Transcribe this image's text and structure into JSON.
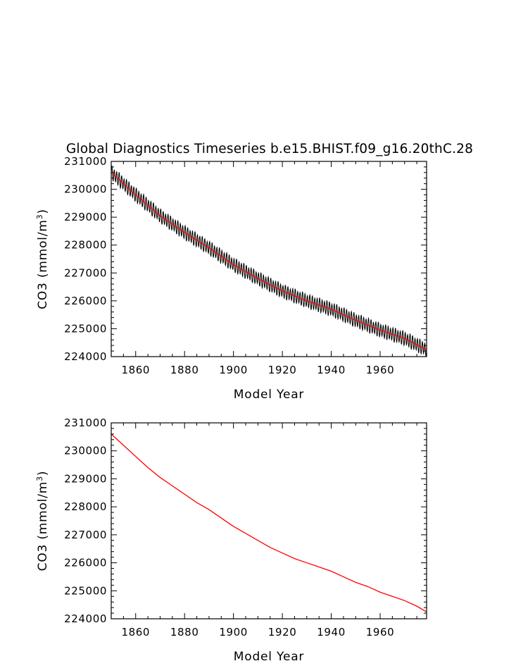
{
  "page": {
    "title": "Global Diagnostics Timeseries b.e15.BHIST.f09_g16.20thC.28"
  },
  "colors": {
    "raw_series": "#000000",
    "smoothed_series": "#ff0000",
    "axes": "#000000"
  },
  "chart_data": [
    {
      "type": "line",
      "title": "Global Diagnostics Timeseries b.e15.BHIST.f09_g16.20thC.28",
      "xlabel": "Model Year",
      "ylabel_main": "CO3 (mmol/m",
      "ylabel_sup": "3",
      "ylabel_close": ")",
      "xlim": [
        1850,
        1979
      ],
      "ylim": [
        224000,
        231000
      ],
      "xticks": [
        1860,
        1880,
        1900,
        1920,
        1940,
        1960
      ],
      "xtick_labels": [
        "1860",
        "1880",
        "1900",
        "1920",
        "1940",
        "1960"
      ],
      "yticks": [
        224000,
        225000,
        226000,
        227000,
        228000,
        229000,
        230000,
        231000
      ],
      "ytick_labels": [
        "224000",
        "225000",
        "226000",
        "227000",
        "228000",
        "229000",
        "230000",
        "231000"
      ],
      "x_minor_step": 5,
      "y_minor_step": 200,
      "grid": false,
      "series": [
        {
          "color": "#000000",
          "note_sampling": "monthly",
          "x": [
            1850,
            1860,
            1870,
            1880,
            1890,
            1900,
            1910,
            1920,
            1930,
            1940,
            1950,
            1960,
            1970,
            1978.9
          ],
          "y": [
            230600,
            229800,
            229050,
            228450,
            227900,
            227300,
            226800,
            226350,
            226000,
            225700,
            225300,
            224950,
            224650,
            224250
          ],
          "seasonal_amplitude": 230
        },
        {
          "color": "#ff0000",
          "x": [
            1850,
            1860,
            1870,
            1880,
            1890,
            1900,
            1910,
            1920,
            1930,
            1940,
            1950,
            1960,
            1970,
            1978.9
          ],
          "y": [
            230600,
            229800,
            229050,
            228450,
            227900,
            227300,
            226800,
            226350,
            226000,
            225700,
            225300,
            224950,
            224650,
            224250
          ]
        }
      ]
    },
    {
      "type": "line",
      "xlabel": "Model Year",
      "ylabel_main": "CO3 (mmol/m",
      "ylabel_sup": "3",
      "ylabel_close": ")",
      "xlim": [
        1850,
        1979
      ],
      "ylim": [
        224000,
        231000
      ],
      "xticks": [
        1860,
        1880,
        1900,
        1920,
        1940,
        1960
      ],
      "xtick_labels": [
        "1860",
        "1880",
        "1900",
        "1920",
        "1940",
        "1960"
      ],
      "yticks": [
        224000,
        225000,
        226000,
        227000,
        228000,
        229000,
        230000,
        231000
      ],
      "ytick_labels": [
        "224000",
        "225000",
        "226000",
        "227000",
        "228000",
        "229000",
        "230000",
        "231000"
      ],
      "x_minor_step": 5,
      "y_minor_step": 200,
      "grid": false,
      "series": [
        {
          "color": "#ff0000",
          "x": [
            1850,
            1855,
            1860,
            1865,
            1870,
            1875,
            1880,
            1885,
            1890,
            1895,
            1900,
            1905,
            1910,
            1915,
            1920,
            1925,
            1930,
            1935,
            1940,
            1945,
            1950,
            1955,
            1960,
            1965,
            1970,
            1975,
            1978.9
          ],
          "y": [
            230600,
            230200,
            229800,
            229400,
            229050,
            228750,
            228450,
            228150,
            227900,
            227600,
            227300,
            227050,
            226800,
            226550,
            226350,
            226150,
            226000,
            225850,
            225700,
            225500,
            225300,
            225150,
            224950,
            224800,
            224650,
            224450,
            224250
          ]
        }
      ]
    }
  ]
}
